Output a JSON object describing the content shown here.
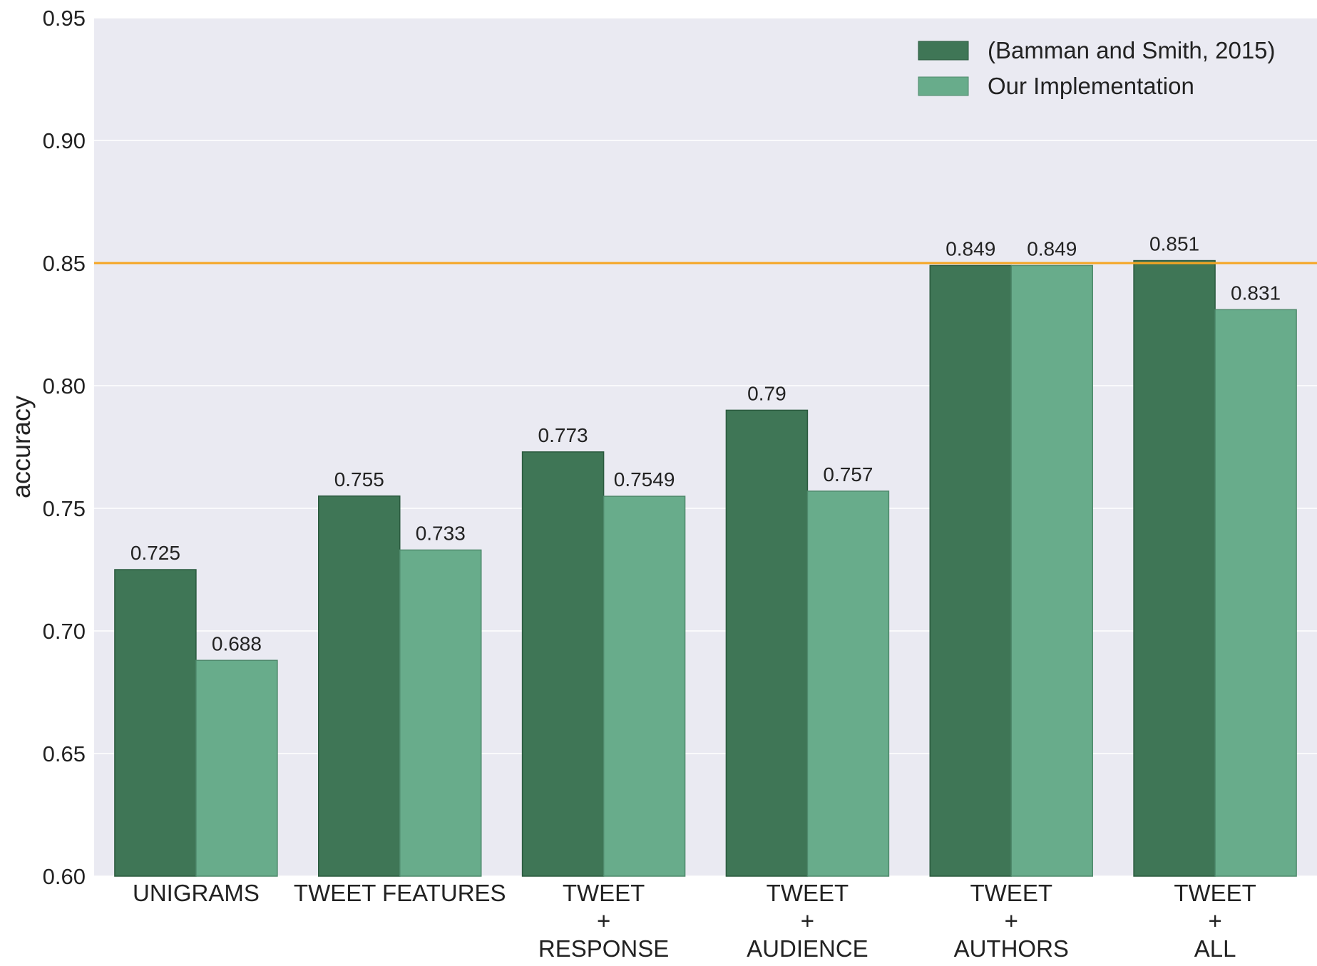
{
  "chart_data": {
    "type": "bar",
    "title": "",
    "xlabel": "",
    "ylabel": "accuracy",
    "ylim": [
      0.6,
      0.95
    ],
    "yticks": [
      "0.60",
      "0.65",
      "0.70",
      "0.75",
      "0.80",
      "0.85",
      "0.90",
      "0.95"
    ],
    "grid": true,
    "legend_position": "top-right",
    "reference_line": {
      "value": 0.85,
      "color": "#f5a623"
    },
    "categories": [
      [
        "UNIGRAMS"
      ],
      [
        "TWEET FEATURES"
      ],
      [
        "TWEET",
        "+",
        "RESPONSE"
      ],
      [
        "TWEET",
        "+",
        "AUDIENCE"
      ],
      [
        "TWEET",
        "+",
        "AUTHORS"
      ],
      [
        "TWEET",
        "+",
        "ALL"
      ]
    ],
    "series": [
      {
        "name": "(Bamman and Smith, 2015)",
        "color": "#3f7656",
        "values": [
          0.725,
          0.755,
          0.773,
          0.79,
          0.849,
          0.851
        ],
        "labels": [
          "0.725",
          "0.755",
          "0.773",
          "0.79",
          "0.849",
          "0.851"
        ]
      },
      {
        "name": "Our Implementation",
        "color": "#68ac8b",
        "values": [
          0.688,
          0.733,
          0.7549,
          0.757,
          0.849,
          0.831
        ],
        "labels": [
          "0.688",
          "0.733",
          "0.7549",
          "0.757",
          "0.849",
          "0.831"
        ]
      }
    ],
    "plot_background": "#eaeaf2"
  }
}
